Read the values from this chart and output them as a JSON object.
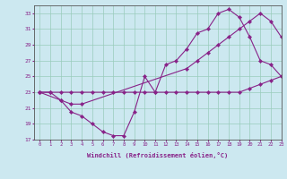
{
  "xlabel": "Windchill (Refroidissement éolien,°C)",
  "background_color": "#cce8f0",
  "grid_color": "#99ccbb",
  "line_color": "#882288",
  "line1": {
    "x": [
      0,
      1,
      2,
      3,
      4,
      5,
      6,
      7,
      8,
      9,
      10,
      11,
      12,
      13,
      14,
      15,
      16,
      17,
      18,
      19,
      20,
      21,
      22,
      23
    ],
    "y": [
      23,
      23,
      23,
      23,
      23,
      23,
      23,
      23,
      23,
      23,
      23,
      23,
      23,
      23,
      23,
      23,
      23,
      23,
      23,
      23,
      23.5,
      24,
      24.5,
      25
    ]
  },
  "line2": {
    "x": [
      0,
      1,
      2,
      3,
      4,
      5,
      6,
      7,
      8,
      9,
      10,
      11,
      12,
      13,
      14,
      15,
      16,
      17,
      18,
      19,
      20,
      21,
      22,
      23
    ],
    "y": [
      23,
      23,
      22,
      20.5,
      20,
      19,
      18,
      17.5,
      17.5,
      20.5,
      25,
      23,
      26.5,
      27,
      28.5,
      30.5,
      31,
      33,
      33.5,
      32.5,
      30,
      27,
      26.5,
      25
    ]
  },
  "line3": {
    "x": [
      0,
      2,
      3,
      4,
      14,
      15,
      16,
      17,
      18,
      19,
      20,
      21,
      22,
      23
    ],
    "y": [
      23,
      22,
      21.5,
      21.5,
      26,
      27,
      28,
      29,
      30,
      31,
      32,
      33,
      32,
      30
    ]
  },
  "ylim": [
    17,
    34
  ],
  "xlim": [
    -0.5,
    23
  ],
  "yticks": [
    17,
    19,
    21,
    23,
    25,
    27,
    29,
    31,
    33
  ],
  "xticks": [
    0,
    1,
    2,
    3,
    4,
    5,
    6,
    7,
    8,
    9,
    10,
    11,
    12,
    13,
    14,
    15,
    16,
    17,
    18,
    19,
    20,
    21,
    22,
    23
  ]
}
